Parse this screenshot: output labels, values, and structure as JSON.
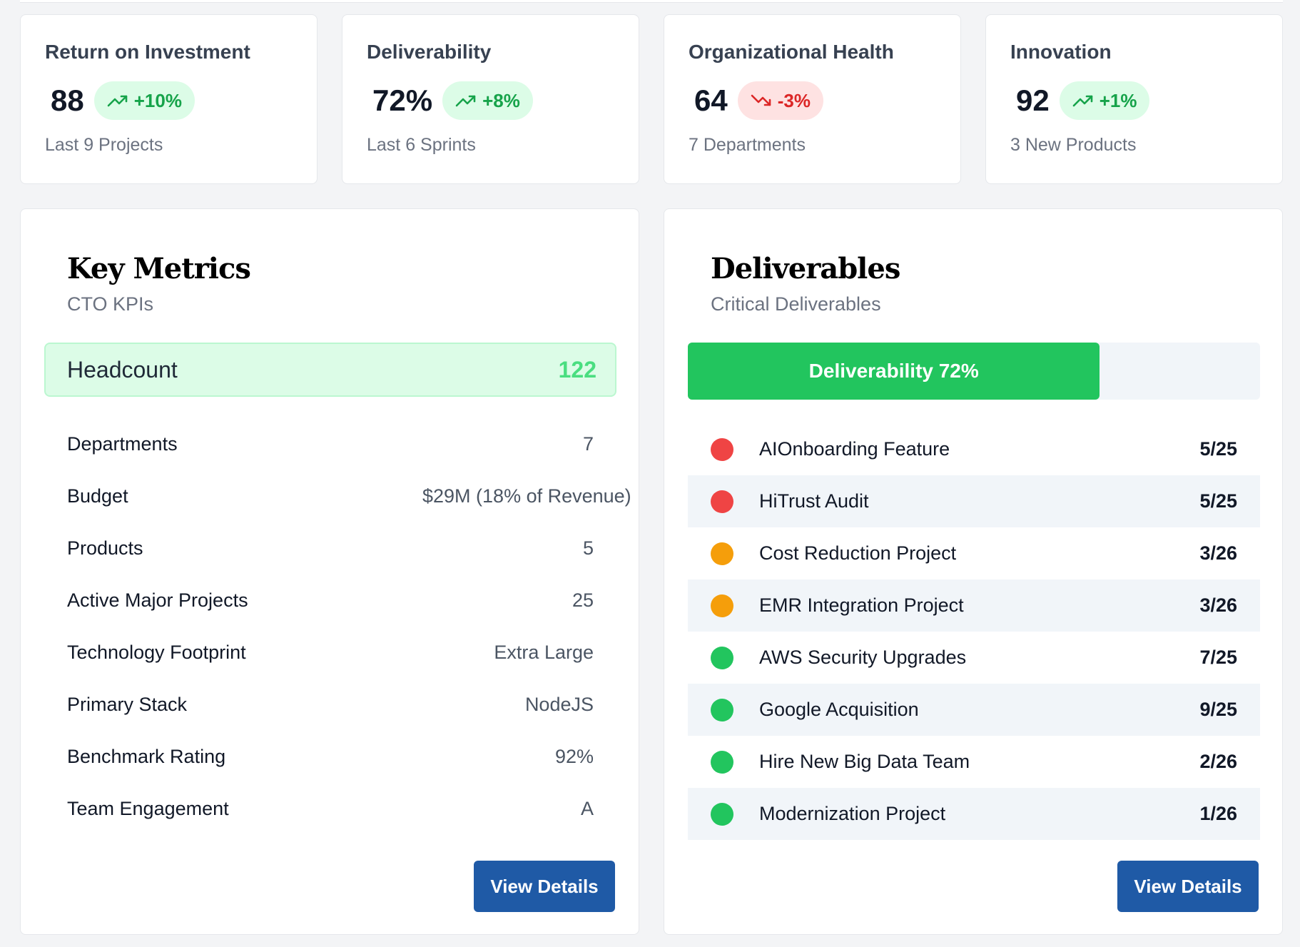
{
  "kpis": [
    {
      "title": "Return on Investment",
      "value": "88",
      "change": "+10%",
      "direction": "up",
      "sub": "Last 9 Projects"
    },
    {
      "title": "Deliverability",
      "value": "72%",
      "change": "+8%",
      "direction": "up",
      "sub": "Last 6 Sprints"
    },
    {
      "title": "Organizational Health",
      "value": "64",
      "change": "-3%",
      "direction": "down",
      "sub": "7 Departments"
    },
    {
      "title": "Innovation",
      "value": "92",
      "change": "+1%",
      "direction": "up",
      "sub": "3 New Products"
    }
  ],
  "key_metrics": {
    "title": "Key Metrics",
    "subtitle": "CTO KPIs",
    "headcount_label": "Headcount",
    "headcount_value": "122",
    "rows": [
      {
        "label": "Departments",
        "value": "7"
      },
      {
        "label": "Budget",
        "value": "$29M (18% of Revenue)"
      },
      {
        "label": "Products",
        "value": "5"
      },
      {
        "label": "Active Major Projects",
        "value": "25"
      },
      {
        "label": "Technology Footprint",
        "value": "Extra Large"
      },
      {
        "label": "Primary Stack",
        "value": "NodeJS"
      },
      {
        "label": "Benchmark Rating",
        "value": "92%"
      },
      {
        "label": "Team Engagement",
        "value": "A"
      }
    ],
    "button_label": "View Details"
  },
  "deliverables": {
    "title": "Deliverables",
    "subtitle": "Critical Deliverables",
    "progress_label": "Deliverability 72%",
    "progress_percent": 72,
    "items": [
      {
        "name": "AIOnboarding Feature",
        "date": "5/25",
        "status": "red"
      },
      {
        "name": "HiTrust Audit",
        "date": "5/25",
        "status": "red"
      },
      {
        "name": "Cost Reduction Project",
        "date": "3/26",
        "status": "orange"
      },
      {
        "name": "EMR Integration Project",
        "date": "3/26",
        "status": "orange"
      },
      {
        "name": "AWS Security Upgrades",
        "date": "7/25",
        "status": "green"
      },
      {
        "name": "Google Acquisition",
        "date": "9/25",
        "status": "green"
      },
      {
        "name": "Hire New Big Data Team",
        "date": "2/26",
        "status": "green"
      },
      {
        "name": "Modernization Project",
        "date": "1/26",
        "status": "green"
      }
    ],
    "button_label": "View Details"
  },
  "colors": {
    "status_red": "#ef4444",
    "status_orange": "#f59e0b",
    "status_green": "#22c55e",
    "button": "#1f5aa6",
    "accent_green": "#22c55e"
  }
}
